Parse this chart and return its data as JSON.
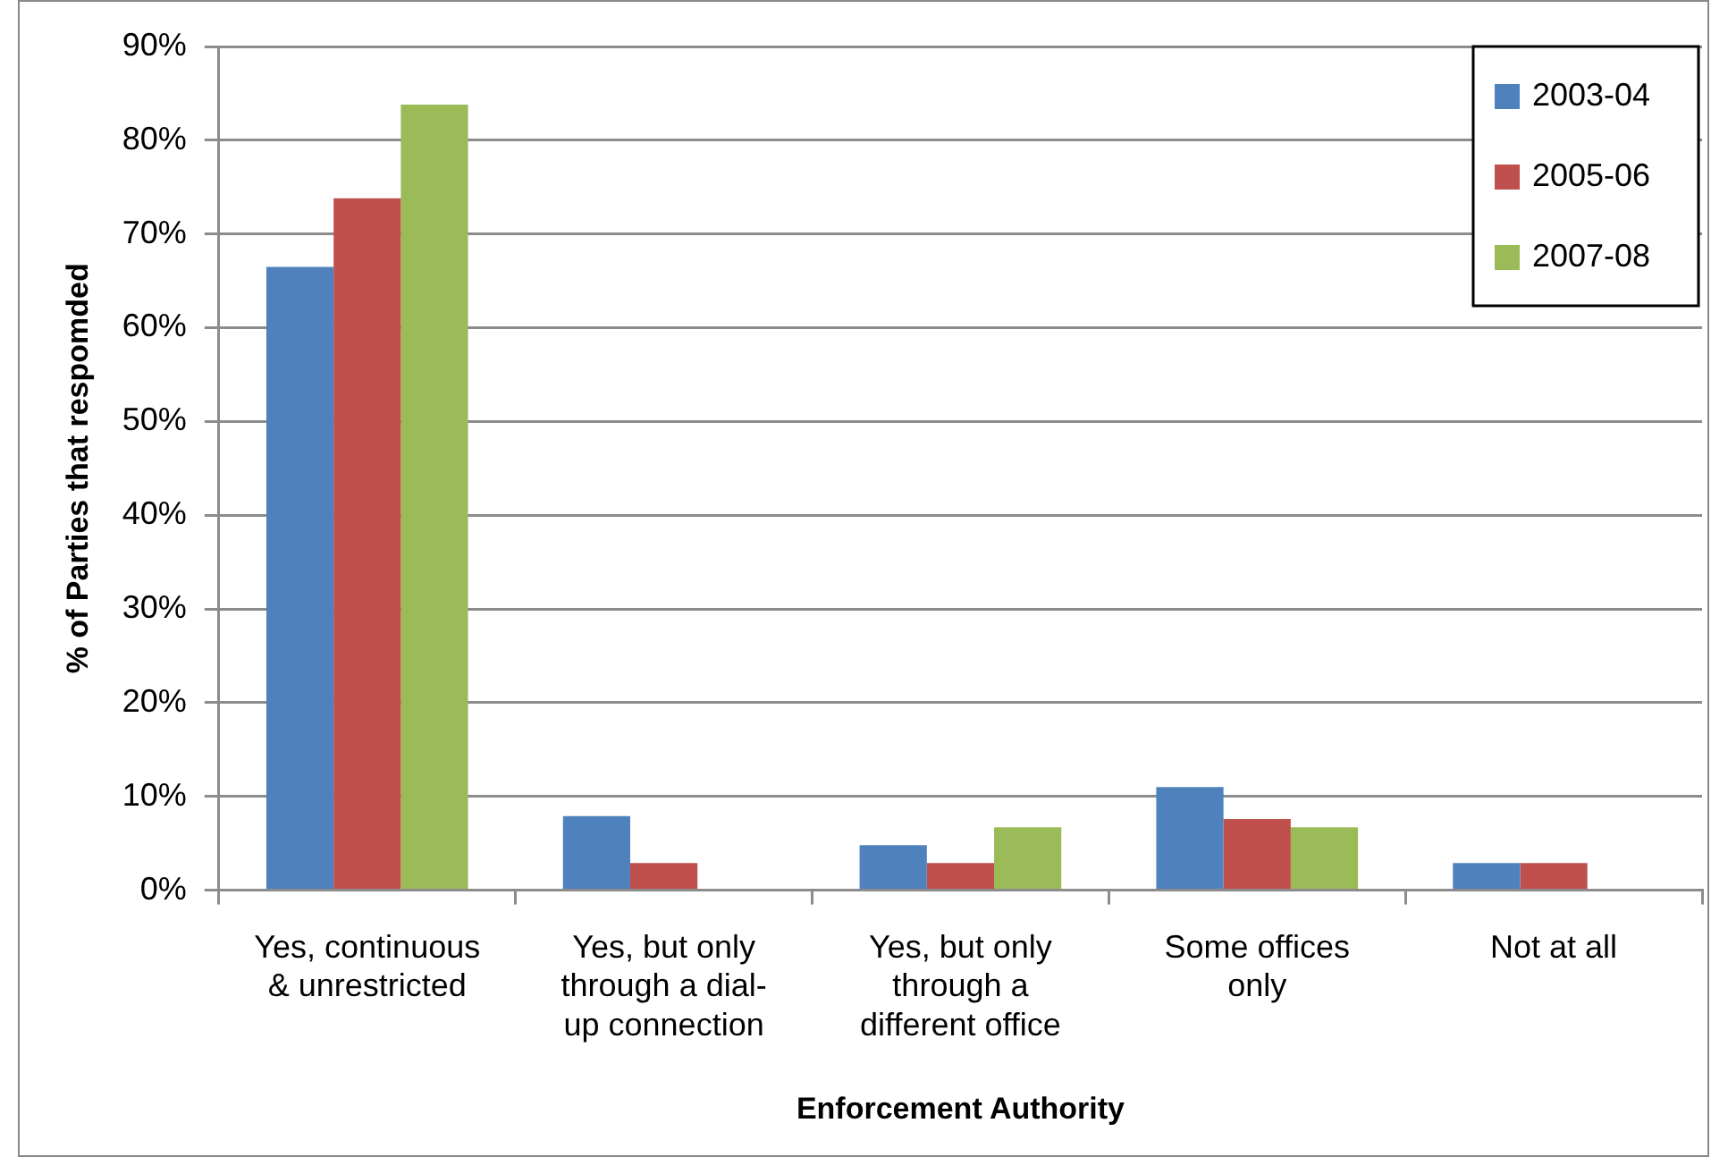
{
  "chart_data": {
    "type": "bar",
    "xlabel": "Enforcement Authority",
    "ylabel": "% of Parties that respomded",
    "categories": [
      "Yes, continuous & unrestricted",
      "Yes, but only through a dial-up connection",
      "Yes, but only through a different office",
      "Some offices only",
      "Not at all"
    ],
    "series": [
      {
        "name": "2003-04",
        "color": "#4f81bd",
        "values": [
          66.5,
          7.9,
          4.8,
          11.0,
          2.9
        ]
      },
      {
        "name": "2005-06",
        "color": "#c0504d",
        "values": [
          73.8,
          2.9,
          2.9,
          7.6,
          2.9
        ]
      },
      {
        "name": "2007-08",
        "color": "#9bbb59",
        "values": [
          83.8,
          0,
          6.7,
          6.7,
          0
        ]
      }
    ],
    "ylim": [
      0,
      90
    ],
    "yticks": [
      {
        "value": 0,
        "label": "0%"
      },
      {
        "value": 10,
        "label": "10%"
      },
      {
        "value": 20,
        "label": "20%"
      },
      {
        "value": 30,
        "label": "30%"
      },
      {
        "value": 40,
        "label": "40%"
      },
      {
        "value": 50,
        "label": "50%"
      },
      {
        "value": 60,
        "label": "60%"
      },
      {
        "value": 70,
        "label": "70%"
      },
      {
        "value": 80,
        "label": "80%"
      },
      {
        "value": 90,
        "label": "90%"
      }
    ],
    "grid": "y",
    "legend": "top right"
  }
}
